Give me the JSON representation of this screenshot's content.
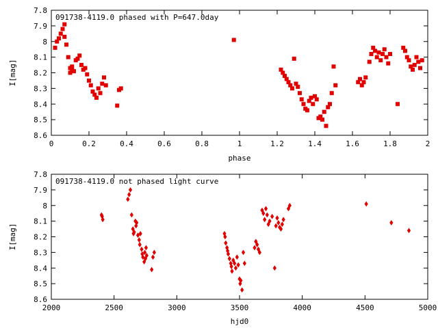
{
  "chart_data": [
    {
      "type": "scatter",
      "title": "091738-4119.0 phased with P=647.0day",
      "xlabel": "phase",
      "ylabel": "I[mag]",
      "xlim": [
        0,
        2
      ],
      "ylim": [
        7.8,
        8.6
      ],
      "y_inverted": true,
      "x_ticks": [
        "0",
        "0.2",
        "0.4",
        "0.6",
        "0.8",
        "1",
        "1.2",
        "1.4",
        "1.6",
        "1.8",
        "2"
      ],
      "y_ticks": [
        "7.8",
        "7.9",
        "8",
        "8.1",
        "8.2",
        "8.3",
        "8.4",
        "8.5",
        "8.6"
      ],
      "marker": "filled square, red",
      "series": [
        {
          "color": "#e00000",
          "x": [
            0.02,
            0.03,
            0.04,
            0.05,
            0.06,
            0.07,
            0.07,
            0.08,
            0.09,
            0.1,
            0.1,
            0.11,
            0.11,
            0.12,
            0.13,
            0.14,
            0.15,
            0.16,
            0.17,
            0.18,
            0.19,
            0.2,
            0.21,
            0.22,
            0.23,
            0.24,
            0.25,
            0.26,
            0.27,
            0.28,
            0.29,
            0.35,
            0.36,
            0.37,
            0.97,
            1.22,
            1.23,
            1.24,
            1.25,
            1.26,
            1.27,
            1.28,
            1.29,
            1.3,
            1.31,
            1.32,
            1.33,
            1.34,
            1.35,
            1.36,
            1.37,
            1.38,
            1.39,
            1.4,
            1.41,
            1.42,
            1.43,
            1.44,
            1.45,
            1.46,
            1.47,
            1.48,
            1.49,
            1.5,
            1.51,
            1.63,
            1.64,
            1.65,
            1.66,
            1.67,
            1.69,
            1.7,
            1.71,
            1.72,
            1.73,
            1.74,
            1.75,
            1.76,
            1.77,
            1.78,
            1.79,
            1.8,
            1.84,
            1.87,
            1.88,
            1.89,
            1.9,
            1.91,
            1.92,
            1.93,
            1.94,
            1.95,
            1.96,
            1.97
          ],
          "y": [
            8.04,
            8.0,
            7.98,
            7.95,
            7.92,
            7.89,
            7.97,
            8.02,
            8.1,
            8.17,
            8.2,
            8.18,
            8.16,
            8.19,
            8.12,
            8.11,
            8.09,
            8.15,
            8.18,
            8.17,
            8.21,
            8.25,
            8.28,
            8.32,
            8.34,
            8.36,
            8.3,
            8.33,
            8.27,
            8.23,
            8.28,
            8.41,
            8.31,
            8.3,
            7.99,
            8.18,
            8.2,
            8.22,
            8.24,
            8.26,
            8.28,
            8.3,
            8.11,
            8.27,
            8.29,
            8.33,
            8.37,
            8.4,
            8.43,
            8.44,
            8.38,
            8.36,
            8.4,
            8.35,
            8.37,
            8.49,
            8.48,
            8.5,
            8.45,
            8.54,
            8.42,
            8.4,
            8.33,
            8.16,
            8.28,
            8.26,
            8.24,
            8.28,
            8.26,
            8.23,
            8.13,
            8.08,
            8.04,
            8.06,
            8.1,
            8.07,
            8.12,
            8.08,
            8.05,
            8.1,
            8.14,
            8.08,
            8.4,
            8.04,
            8.06,
            8.1,
            8.12,
            8.16,
            8.18,
            8.15,
            8.1,
            8.13,
            8.17,
            8.12
          ]
        }
      ]
    },
    {
      "type": "scatter",
      "title": "091738-4119.0 not phased light curve",
      "xlabel": "hjd0",
      "ylabel": "I[mag]",
      "xlim": [
        2000,
        5000
      ],
      "ylim": [
        7.8,
        8.6
      ],
      "y_inverted": true,
      "x_ticks": [
        "2000",
        "2500",
        "3000",
        "3500",
        "4000",
        "4500",
        "5000"
      ],
      "y_ticks": [
        "7.8",
        "7.9",
        "8",
        "8.1",
        "8.2",
        "8.3",
        "8.4",
        "8.5",
        "8.6"
      ],
      "marker": "small diamond, red",
      "series": [
        {
          "color": "#e00000",
          "x": [
            2400,
            2405,
            2410,
            2610,
            2620,
            2630,
            2640,
            2650,
            2655,
            2660,
            2670,
            2675,
            2680,
            2690,
            2700,
            2705,
            2710,
            2720,
            2725,
            2730,
            2740,
            2745,
            2750,
            2755,
            2760,
            2800,
            2810,
            2820,
            3380,
            3385,
            3390,
            3400,
            3405,
            3410,
            3420,
            3430,
            3435,
            3440,
            3450,
            3460,
            3470,
            3480,
            3490,
            3500,
            3505,
            3510,
            3520,
            3530,
            3540,
            3620,
            3630,
            3640,
            3650,
            3660,
            3680,
            3690,
            3700,
            3710,
            3720,
            3730,
            3740,
            3760,
            3780,
            3790,
            3800,
            3810,
            3820,
            3830,
            3840,
            3850,
            3890,
            3900,
            4510,
            4710,
            4850
          ],
          "y": [
            8.06,
            8.07,
            8.09,
            7.96,
            7.93,
            7.9,
            8.06,
            8.15,
            8.18,
            8.17,
            8.1,
            8.13,
            8.11,
            8.19,
            8.22,
            8.25,
            8.18,
            8.28,
            8.31,
            8.33,
            8.36,
            8.3,
            8.34,
            8.27,
            8.32,
            8.41,
            8.33,
            8.3,
            8.18,
            8.2,
            8.24,
            8.27,
            8.29,
            8.31,
            8.34,
            8.37,
            8.39,
            8.42,
            8.35,
            8.37,
            8.4,
            8.33,
            8.38,
            8.47,
            8.5,
            8.48,
            8.54,
            8.3,
            8.37,
            8.27,
            8.23,
            8.25,
            8.28,
            8.3,
            8.03,
            8.05,
            8.09,
            8.02,
            8.06,
            8.12,
            8.1,
            8.07,
            8.4,
            8.13,
            8.08,
            8.11,
            8.14,
            8.15,
            8.12,
            8.09,
            8.02,
            8.0,
            7.99,
            8.11,
            8.16
          ]
        }
      ]
    }
  ]
}
